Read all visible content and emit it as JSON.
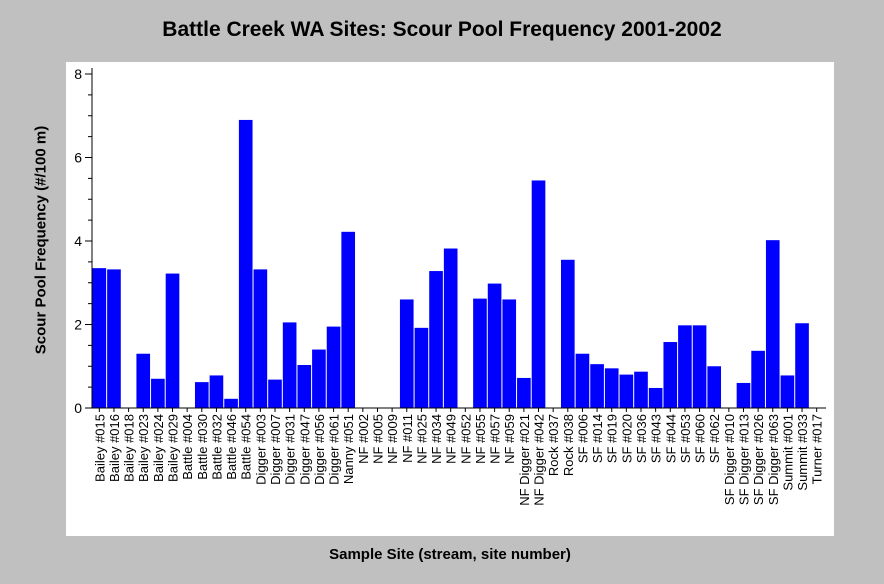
{
  "chart_data": {
    "type": "bar",
    "title": "Battle Creek WA Sites: Scour Pool Frequency 2001-2002",
    "xlabel": "Sample Site (stream, site number)",
    "ylabel": "Scour Pool Frequency (#/100 m)",
    "ylim": [
      0,
      8
    ],
    "yticks": [
      "0",
      "2",
      "4",
      "6",
      "8"
    ],
    "bar_color": "#0000ff",
    "categories": [
      "Bailey #015",
      "Bailey #016",
      "Bailey #018",
      "Bailey #023",
      "Bailey #024",
      "Bailey #029",
      "Battle #004",
      "Battle #030",
      "Battle #032",
      "Battle #046",
      "Battle #054",
      "Digger #003",
      "Digger #007",
      "Digger #031",
      "Digger #047",
      "Digger #056",
      "Digger #061",
      "Nanny #051",
      "NF #002",
      "NF #005",
      "NF #009",
      "NF #011",
      "NF #025",
      "NF #034",
      "NF #049",
      "NF #052",
      "NF #055",
      "NF #057",
      "NF #059",
      "NF Digger #021",
      "NF Digger #042",
      "Rock #037",
      "Rock #038",
      "SF #006",
      "SF #014",
      "SF #019",
      "SF #020",
      "SF #036",
      "SF #043",
      "SF #044",
      "SF #053",
      "SF #060",
      "SF #062",
      "SF Digger #010",
      "SF Digger #013",
      "SF Digger #026",
      "SF Digger #063",
      "Summit #001",
      "Summit #033",
      "Turner #017"
    ],
    "values": [
      3.35,
      3.32,
      0,
      1.3,
      0.7,
      3.22,
      0,
      0.62,
      0.78,
      0.22,
      6.9,
      3.32,
      0.68,
      2.05,
      1.03,
      1.4,
      1.95,
      4.22,
      0,
      0,
      0,
      2.6,
      1.92,
      3.28,
      3.82,
      0,
      2.62,
      2.98,
      2.6,
      0.72,
      5.45,
      0,
      3.55,
      1.3,
      1.05,
      0.95,
      0.8,
      0.87,
      0.48,
      1.58,
      1.98,
      1.98,
      1.0,
      0,
      0.6,
      1.37,
      4.02,
      0.78,
      2.03,
      0
    ]
  }
}
